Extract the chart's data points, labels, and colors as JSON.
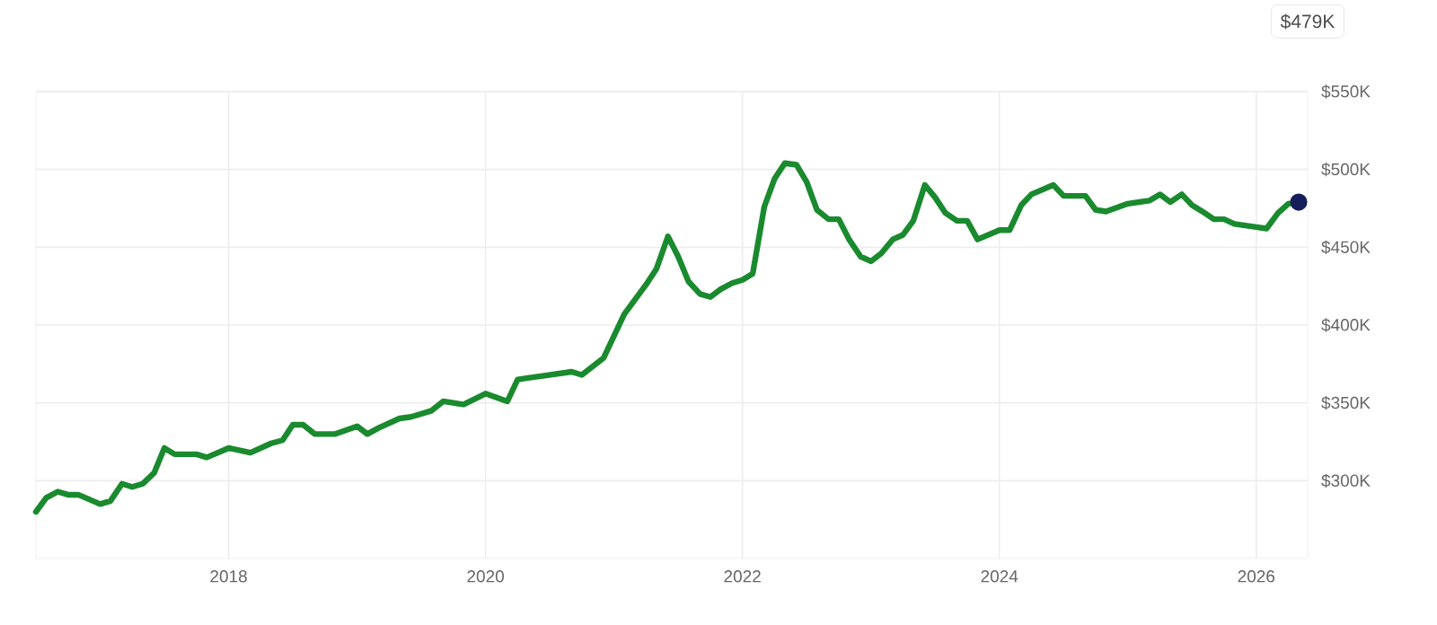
{
  "chart_data": {
    "type": "line",
    "grid": true,
    "x": [
      2016.5,
      2016.58,
      2016.67,
      2016.75,
      2016.83,
      2017.0,
      2017.08,
      2017.17,
      2017.25,
      2017.33,
      2017.42,
      2017.5,
      2017.58,
      2017.75,
      2017.83,
      2018.0,
      2018.17,
      2018.33,
      2018.42,
      2018.5,
      2018.58,
      2018.67,
      2018.83,
      2019.0,
      2019.08,
      2019.17,
      2019.33,
      2019.42,
      2019.58,
      2019.67,
      2019.75,
      2019.83,
      2020.0,
      2020.17,
      2020.25,
      2020.33,
      2020.42,
      2020.67,
      2020.75,
      2020.92,
      2021.08,
      2021.25,
      2021.33,
      2021.42,
      2021.5,
      2021.58,
      2021.67,
      2021.75,
      2021.83,
      2021.92,
      2022.0,
      2022.08,
      2022.17,
      2022.25,
      2022.33,
      2022.42,
      2022.5,
      2022.58,
      2022.67,
      2022.75,
      2022.83,
      2022.92,
      2023.0,
      2023.08,
      2023.17,
      2023.25,
      2023.33,
      2023.42,
      2023.5,
      2023.58,
      2023.67,
      2023.75,
      2023.83,
      2024.0,
      2024.08,
      2024.17,
      2024.25,
      2024.42,
      2024.5,
      2024.67,
      2024.75,
      2024.83,
      2025.0,
      2025.17,
      2025.25,
      2025.33,
      2025.42,
      2025.5,
      2025.58,
      2025.67,
      2025.75,
      2025.83,
      2026.0,
      2026.08,
      2026.17,
      2026.25,
      2026.33
    ],
    "series": [
      {
        "color": "#1a8a2e",
        "marker": "none",
        "line_style": "solid",
        "values": [
          280,
          289,
          293,
          291,
          291,
          285,
          287,
          298,
          296,
          298,
          305,
          321,
          317,
          317,
          315,
          321,
          318,
          324,
          326,
          336,
          336,
          330,
          330,
          335,
          330,
          334,
          340,
          341,
          345,
          351,
          350,
          349,
          356,
          351,
          365,
          366,
          367,
          370,
          368,
          379,
          407,
          426,
          436,
          457,
          444,
          428,
          420,
          418,
          423,
          427,
          429,
          433,
          476,
          494,
          504,
          503,
          492,
          474,
          468,
          468,
          455,
          444,
          441,
          446,
          455,
          458,
          467,
          490,
          482,
          472,
          467,
          467,
          455,
          461,
          461,
          477,
          484,
          490,
          483,
          483,
          474,
          473,
          478,
          480,
          484,
          479,
          484,
          477,
          473,
          468,
          468,
          465,
          463,
          462,
          472,
          478,
          479
        ]
      },
      {
        "type": "scatter",
        "color": "#141e5a",
        "x": [
          2026.33
        ],
        "values": [
          479
        ]
      }
    ],
    "xlim": [
      2016.5,
      2026.4
    ],
    "xticks": [
      2018,
      2020,
      2022,
      2024,
      2026
    ],
    "ylim": [
      250,
      550
    ],
    "yticks": [
      {
        "value": 300,
        "label": "$300K"
      },
      {
        "value": 350,
        "label": "$350K"
      },
      {
        "value": 400,
        "label": "$400K"
      },
      {
        "value": 450,
        "label": "$450K"
      },
      {
        "value": 500,
        "label": "$500K"
      },
      {
        "value": 550,
        "label": "$550K"
      }
    ],
    "annotations": [
      "$479K"
    ]
  }
}
